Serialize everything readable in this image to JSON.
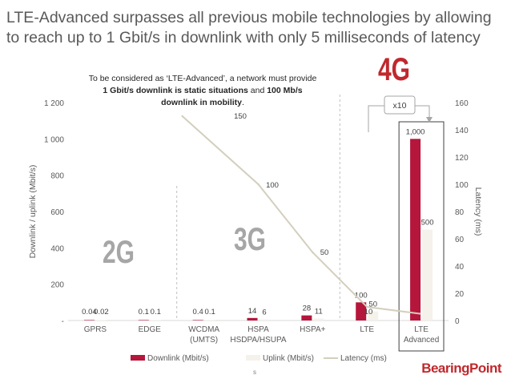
{
  "header": {
    "title": "LTE-Advanced surpasses all previous mobile technologies by allowing to reach up to 1 Gbit/s in downlink with only 5 milliseconds of latency"
  },
  "annotation": {
    "line1": "To be considered as ‘LTE-Advanced’, a network must provide",
    "line2_bold": "1 Gbit/s downlink is static situations",
    "line2_mid": " and ",
    "line2_bold2": "100 Mb/s",
    "line3_bold": "downlink in mobility",
    "line3_end": "."
  },
  "generations": {
    "g2": "2G",
    "g3": "3G",
    "g4": "4G"
  },
  "multiplier": "x10",
  "logo": "BearingPoint",
  "footer_mark": "s",
  "colors": {
    "downlink": "#b5163c",
    "uplink": "#f4f2ea",
    "latency": "#d4cfbd",
    "generation_text": "#a6a6a6",
    "g4_text": "#c0282d"
  },
  "chart_data": {
    "type": "bar",
    "categories": [
      [
        "GPRS"
      ],
      [
        "EDGE"
      ],
      [
        "WCDMA",
        "(UMTS)"
      ],
      [
        "HSPA",
        "HSDPA/HSUPA"
      ],
      [
        "HSPA+"
      ],
      [
        "LTE"
      ],
      [
        "LTE",
        "Advanced"
      ]
    ],
    "series": [
      {
        "name": "Downlink (Mbit/s)",
        "type": "bar",
        "axis": "left",
        "values": [
          0.04,
          0.1,
          0.4,
          14,
          28,
          100,
          1000
        ],
        "labels": [
          "0.04",
          "0.1",
          "0.4",
          "14",
          "28",
          "100",
          "1,000"
        ]
      },
      {
        "name": "Uplink (Mbit/s)",
        "type": "bar",
        "axis": "left",
        "values": [
          0.02,
          0.1,
          0.1,
          6,
          11,
          50,
          500
        ],
        "labels": [
          "0.02",
          "0.1",
          "0.1",
          "6",
          "11",
          "50",
          "500"
        ]
      },
      {
        "name": "Latency (ms)",
        "type": "line",
        "axis": "right",
        "values": [
          null,
          null,
          150,
          100,
          50,
          10,
          5
        ],
        "labels": [
          "",
          "",
          "150",
          "100",
          "50",
          "10",
          ""
        ]
      }
    ],
    "ylabel": "Downlink / uplink (Mbit/s)",
    "y2label": "Latency (ms)",
    "ylim": [
      0,
      1200
    ],
    "yticks": [
      "-",
      "200",
      "400",
      "600",
      "800",
      "1 000",
      "1 200"
    ],
    "y2lim": [
      0,
      160
    ],
    "y2ticks": [
      "0",
      "20",
      "40",
      "60",
      "80",
      "100",
      "120",
      "140",
      "160"
    ],
    "legend_position": "bottom",
    "grid": false
  }
}
